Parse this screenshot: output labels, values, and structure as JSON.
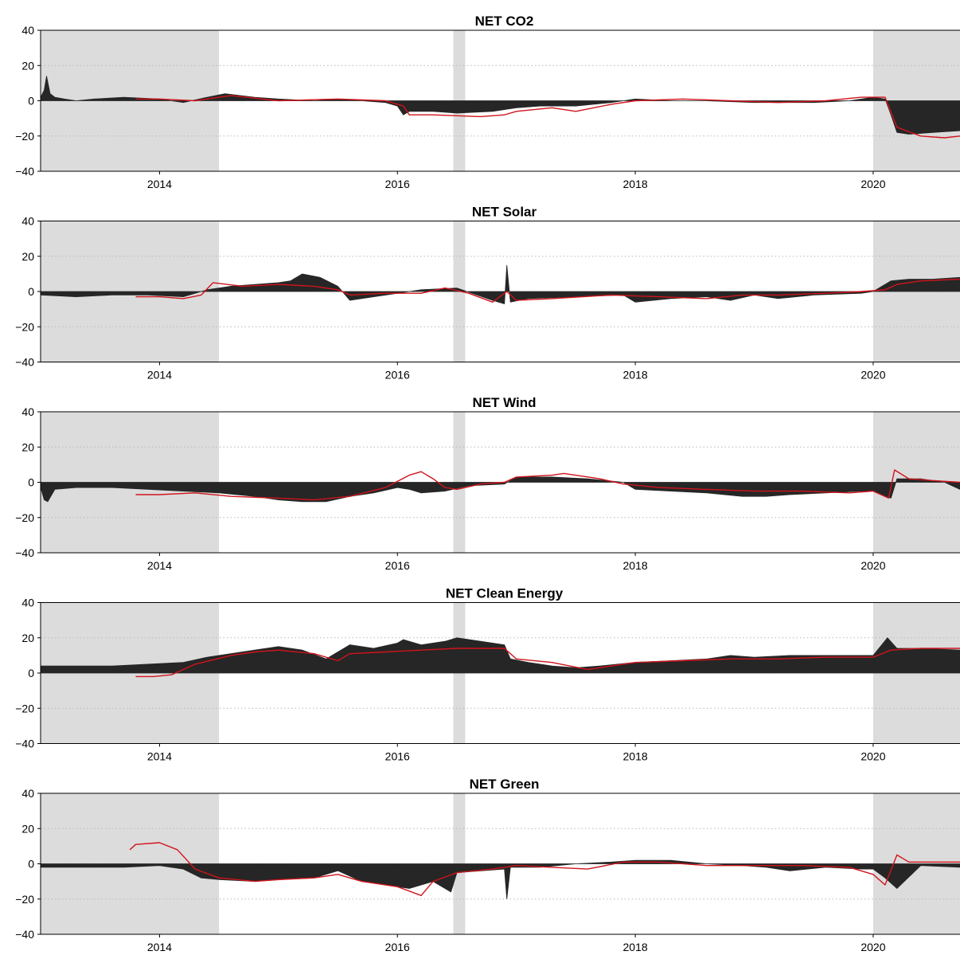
{
  "colors": {
    "fill": "#262626",
    "line": "#d0141c",
    "shade": "#dcdcdc",
    "grid": "#b8b8b8"
  },
  "chart_data": [
    {
      "type": "area",
      "title": "NET CO2",
      "xlim": [
        2013.0,
        2020.73
      ],
      "ylim": [
        -40,
        40
      ],
      "yticks": [
        -40,
        -20,
        0,
        20,
        40
      ],
      "xticks": [
        2014,
        2016,
        2018,
        2020
      ],
      "grid": "horizontal dotted",
      "shaded_ranges": [
        [
          2013.0,
          2014.5
        ],
        [
          2016.47,
          2016.57
        ],
        [
          2020.0,
          2020.73
        ]
      ],
      "series": [
        {
          "style": "filled area",
          "x": [
            2013.0,
            2013.03,
            2013.05,
            2013.08,
            2013.12,
            2013.2,
            2013.3,
            2013.45,
            2013.7,
            2014.0,
            2014.2,
            2014.4,
            2014.55,
            2014.8,
            2015.0,
            2015.3,
            2015.5,
            2015.7,
            2015.9,
            2016.0,
            2016.05,
            2016.1,
            2016.3,
            2016.5,
            2016.8,
            2017.0,
            2017.2,
            2017.5,
            2017.8,
            2018.0,
            2018.3,
            2018.6,
            2019.0,
            2019.5,
            2019.8,
            2020.0,
            2020.1,
            2020.15,
            2020.2,
            2020.3,
            2020.5,
            2020.73
          ],
          "y": [
            2,
            6,
            14,
            4,
            2,
            1,
            0,
            1,
            2,
            1,
            -1,
            2,
            4,
            2,
            1,
            0,
            1,
            0,
            -1,
            -3,
            -8,
            -6,
            -6,
            -7,
            -6,
            -4,
            -3,
            -3,
            -1,
            1,
            0,
            0,
            -1,
            -1,
            0,
            2,
            1,
            -8,
            -18,
            -19,
            -18,
            -17
          ]
        },
        {
          "style": "line",
          "x": [
            2013.8,
            2014.0,
            2014.3,
            2014.6,
            2015.0,
            2015.5,
            2015.9,
            2016.05,
            2016.1,
            2016.3,
            2016.7,
            2016.9,
            2017.0,
            2017.3,
            2017.5,
            2017.8,
            2018.0,
            2018.4,
            2018.8,
            2019.2,
            2019.6,
            2019.9,
            2020.1,
            2020.2,
            2020.4,
            2020.6,
            2020.73
          ],
          "y": [
            1,
            1,
            0,
            3,
            0,
            1,
            0,
            -3,
            -8,
            -8,
            -9,
            -8,
            -6,
            -4,
            -6,
            -2,
            0,
            1,
            0,
            -1,
            0,
            2,
            2,
            -15,
            -20,
            -21,
            -20
          ]
        }
      ]
    },
    {
      "type": "area",
      "title": "NET Solar",
      "xlim": [
        2013.0,
        2020.73
      ],
      "ylim": [
        -40,
        40
      ],
      "yticks": [
        -40,
        -20,
        0,
        20,
        40
      ],
      "xticks": [
        2014,
        2016,
        2018,
        2020
      ],
      "grid": "horizontal dotted",
      "shaded_ranges": [
        [
          2013.0,
          2014.5
        ],
        [
          2016.47,
          2016.57
        ],
        [
          2020.0,
          2020.73
        ]
      ],
      "series": [
        {
          "style": "filled area",
          "x": [
            2013.0,
            2013.3,
            2013.6,
            2013.9,
            2014.2,
            2014.4,
            2014.6,
            2014.8,
            2015.0,
            2015.1,
            2015.2,
            2015.35,
            2015.5,
            2015.6,
            2015.8,
            2016.0,
            2016.2,
            2016.5,
            2016.8,
            2016.9,
            2016.92,
            2016.95,
            2017.1,
            2017.5,
            2017.9,
            2018.0,
            2018.3,
            2018.6,
            2018.8,
            2019.0,
            2019.2,
            2019.5,
            2019.9,
            2020.0,
            2020.15,
            2020.3,
            2020.5,
            2020.73
          ],
          "y": [
            -2,
            -3,
            -2,
            -2,
            -3,
            1,
            3,
            4,
            5,
            6,
            10,
            8,
            3,
            -5,
            -3,
            -1,
            1,
            2,
            -5,
            -7,
            15,
            -6,
            -4,
            -3,
            -2,
            -6,
            -4,
            -3,
            -5,
            -2,
            -4,
            -2,
            -1,
            0,
            6,
            7,
            7,
            8
          ]
        },
        {
          "style": "line",
          "x": [
            2013.8,
            2014.0,
            2014.2,
            2014.35,
            2014.45,
            2014.7,
            2015.0,
            2015.3,
            2015.5,
            2015.6,
            2015.9,
            2016.2,
            2016.4,
            2016.6,
            2016.8,
            2016.92,
            2017.0,
            2017.3,
            2017.8,
            2018.2,
            2018.6,
            2018.9,
            2019.2,
            2019.6,
            2019.9,
            2020.1,
            2020.2,
            2020.4,
            2020.73
          ],
          "y": [
            -3,
            -3,
            -4,
            -2,
            5,
            3,
            4,
            3,
            1,
            -2,
            -1,
            -1,
            2,
            -1,
            -6,
            0,
            -5,
            -4,
            -2,
            -3,
            -4,
            -2,
            -2,
            -1,
            0,
            1,
            4,
            6,
            7
          ]
        }
      ]
    },
    {
      "type": "area",
      "title": "NET Wind",
      "xlim": [
        2013.0,
        2020.73
      ],
      "ylim": [
        -40,
        40
      ],
      "yticks": [
        -40,
        -20,
        0,
        20,
        40
      ],
      "xticks": [
        2014,
        2016,
        2018,
        2020
      ],
      "grid": "horizontal dotted",
      "shaded_ranges": [
        [
          2013.0,
          2014.5
        ],
        [
          2016.47,
          2016.57
        ],
        [
          2020.0,
          2020.73
        ]
      ],
      "series": [
        {
          "style": "filled area",
          "x": [
            2013.0,
            2013.03,
            2013.06,
            2013.12,
            2013.3,
            2013.6,
            2013.9,
            2014.2,
            2014.5,
            2014.8,
            2015.0,
            2015.2,
            2015.4,
            2015.6,
            2015.8,
            2016.0,
            2016.1,
            2016.2,
            2016.4,
            2016.6,
            2016.9,
            2017.0,
            2017.3,
            2017.6,
            2017.9,
            2018.0,
            2018.3,
            2018.6,
            2018.9,
            2019.1,
            2019.3,
            2019.6,
            2019.9,
            2020.0,
            2020.15,
            2020.2,
            2020.4,
            2020.6,
            2020.73
          ],
          "y": [
            -3,
            -10,
            -11,
            -4,
            -3,
            -3,
            -4,
            -5,
            -6,
            -8,
            -10,
            -11,
            -11,
            -8,
            -6,
            -3,
            -4,
            -6,
            -5,
            -2,
            -1,
            3,
            3,
            2,
            0,
            -4,
            -5,
            -6,
            -8,
            -8,
            -7,
            -6,
            -5,
            -5,
            -9,
            2,
            2,
            0,
            -4
          ]
        },
        {
          "style": "line",
          "x": [
            2013.8,
            2014.0,
            2014.3,
            2014.6,
            2015.0,
            2015.3,
            2015.6,
            2015.9,
            2016.1,
            2016.2,
            2016.3,
            2016.4,
            2016.5,
            2016.7,
            2016.9,
            2017.0,
            2017.3,
            2017.4,
            2017.7,
            2017.9,
            2018.2,
            2018.6,
            2019.0,
            2019.4,
            2019.8,
            2020.0,
            2020.13,
            2020.18,
            2020.3,
            2020.5,
            2020.73
          ],
          "y": [
            -7,
            -7,
            -6,
            -8,
            -9,
            -10,
            -8,
            -3,
            4,
            6,
            2,
            -3,
            -4,
            -1,
            0,
            3,
            4,
            5,
            2,
            -1,
            -3,
            -4,
            -5,
            -5,
            -6,
            -5,
            -9,
            7,
            2,
            1,
            0
          ]
        }
      ]
    },
    {
      "type": "area",
      "title": "NET Clean Energy",
      "xlim": [
        2013.0,
        2020.73
      ],
      "ylim": [
        -40,
        40
      ],
      "yticks": [
        -40,
        -20,
        0,
        20,
        40
      ],
      "xticks": [
        2014,
        2016,
        2018,
        2020
      ],
      "grid": "horizontal dotted",
      "shaded_ranges": [
        [
          2013.0,
          2014.5
        ],
        [
          2016.47,
          2016.57
        ],
        [
          2020.0,
          2020.73
        ]
      ],
      "series": [
        {
          "style": "filled area",
          "x": [
            2013.0,
            2013.3,
            2013.6,
            2013.9,
            2014.2,
            2014.4,
            2014.6,
            2014.8,
            2015.0,
            2015.2,
            2015.4,
            2015.6,
            2015.8,
            2016.0,
            2016.05,
            2016.2,
            2016.4,
            2016.5,
            2016.7,
            2016.9,
            2016.95,
            2017.1,
            2017.3,
            2017.5,
            2017.7,
            2018.0,
            2018.3,
            2018.6,
            2018.8,
            2019.0,
            2019.3,
            2019.6,
            2019.9,
            2020.0,
            2020.12,
            2020.2,
            2020.4,
            2020.73
          ],
          "y": [
            4,
            4,
            4,
            5,
            6,
            9,
            11,
            13,
            15,
            13,
            8,
            16,
            14,
            17,
            19,
            16,
            18,
            20,
            18,
            16,
            8,
            6,
            4,
            3,
            4,
            6,
            7,
            8,
            10,
            9,
            10,
            10,
            10,
            10,
            20,
            14,
            14,
            13
          ]
        },
        {
          "style": "line",
          "x": [
            2013.8,
            2013.95,
            2014.1,
            2014.3,
            2014.6,
            2014.8,
            2015.0,
            2015.3,
            2015.5,
            2015.6,
            2015.9,
            2016.2,
            2016.5,
            2016.9,
            2017.0,
            2017.3,
            2017.6,
            2017.8,
            2018.0,
            2018.4,
            2018.8,
            2019.2,
            2019.6,
            2020.0,
            2020.15,
            2020.4,
            2020.73
          ],
          "y": [
            -2,
            -2,
            -1,
            5,
            10,
            12,
            13,
            11,
            7,
            11,
            12,
            13,
            14,
            14,
            8,
            6,
            2,
            4,
            6,
            7,
            8,
            8,
            9,
            9,
            13,
            14,
            14
          ]
        }
      ]
    },
    {
      "type": "area",
      "title": "NET Green",
      "xlim": [
        2013.0,
        2020.73
      ],
      "ylim": [
        -40,
        40
      ],
      "yticks": [
        -40,
        -20,
        0,
        20,
        40
      ],
      "xticks": [
        2014,
        2016,
        2018,
        2020
      ],
      "grid": "horizontal dotted",
      "shaded_ranges": [
        [
          2013.0,
          2014.5
        ],
        [
          2016.47,
          2016.57
        ],
        [
          2020.0,
          2020.73
        ]
      ],
      "series": [
        {
          "style": "filled area",
          "x": [
            2013.0,
            2013.3,
            2013.7,
            2014.0,
            2014.2,
            2014.35,
            2014.5,
            2014.8,
            2015.0,
            2015.3,
            2015.5,
            2015.7,
            2015.9,
            2016.1,
            2016.3,
            2016.45,
            2016.5,
            2016.7,
            2016.9,
            2016.92,
            2016.95,
            2017.2,
            2017.5,
            2017.8,
            2018.0,
            2018.3,
            2018.6,
            2018.9,
            2019.1,
            2019.3,
            2019.6,
            2019.9,
            2020.0,
            2020.1,
            2020.2,
            2020.4,
            2020.73
          ],
          "y": [
            -2,
            -2,
            -2,
            -1,
            -3,
            -8,
            -9,
            -10,
            -9,
            -8,
            -4,
            -10,
            -12,
            -14,
            -10,
            -16,
            -5,
            -4,
            -3,
            -20,
            -2,
            -2,
            0,
            1,
            2,
            2,
            0,
            -1,
            -2,
            -4,
            -2,
            -3,
            -3,
            -8,
            -14,
            -1,
            -2
          ]
        },
        {
          "style": "line",
          "x": [
            2013.75,
            2013.8,
            2014.0,
            2014.15,
            2014.3,
            2014.5,
            2014.8,
            2015.0,
            2015.3,
            2015.5,
            2015.7,
            2016.0,
            2016.2,
            2016.3,
            2016.5,
            2016.8,
            2017.0,
            2017.3,
            2017.6,
            2017.9,
            2018.2,
            2018.6,
            2019.0,
            2019.4,
            2019.8,
            2020.0,
            2020.1,
            2020.2,
            2020.3,
            2020.5,
            2020.73
          ],
          "y": [
            8,
            11,
            12,
            8,
            -3,
            -8,
            -10,
            -9,
            -8,
            -6,
            -10,
            -13,
            -18,
            -10,
            -5,
            -3,
            -1,
            -2,
            -3,
            1,
            1,
            -1,
            -1,
            -1,
            -2,
            -6,
            -12,
            5,
            1,
            1,
            1
          ]
        }
      ]
    }
  ]
}
